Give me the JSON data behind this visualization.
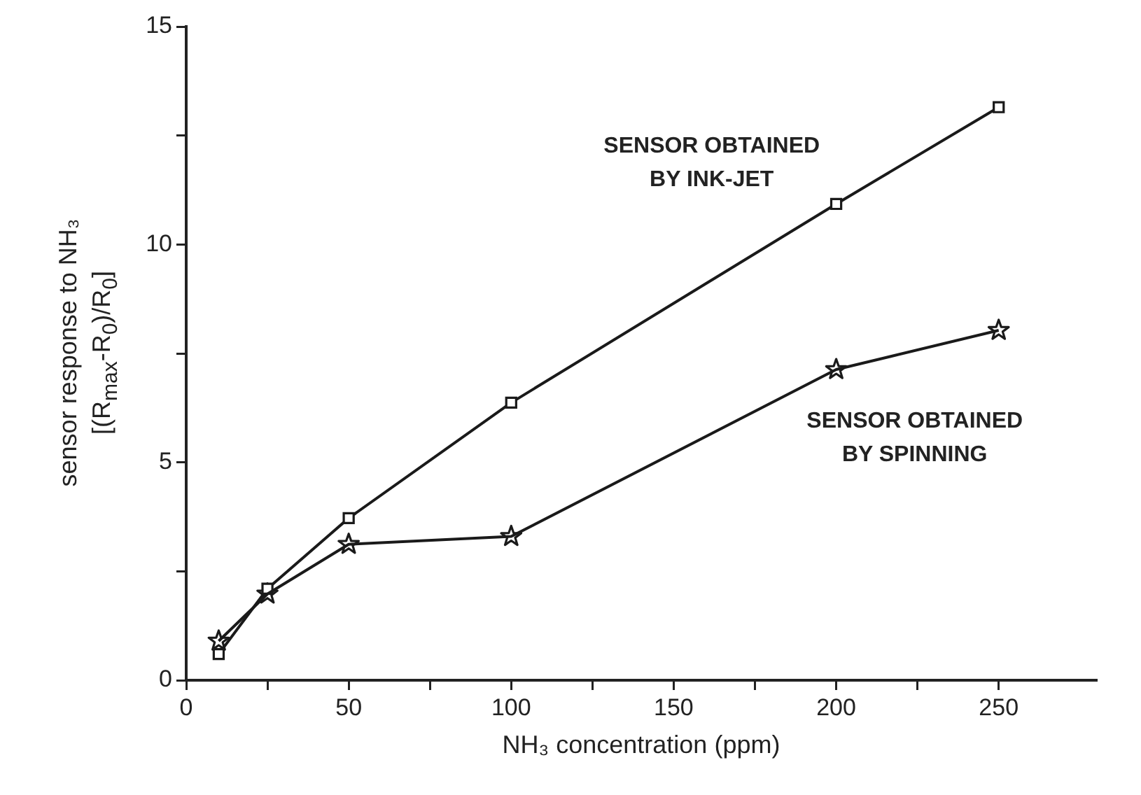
{
  "chart_data": {
    "type": "line",
    "xlabel": "NH₃ concentration (ppm)",
    "ylabel": "sensor response to NH₃\n[(R$_{max}$-R$_{0}$)/R$_{0}$]",
    "x": [
      10,
      25,
      50,
      100,
      200,
      250
    ],
    "series": [
      {
        "name": "SENSOR OBTAINED\nBY INK-JET",
        "color": "#1a1a1a",
        "marker": "square",
        "values": [
          0.6,
          2.1,
          3.72,
          6.37,
          10.93,
          13.15
        ]
      },
      {
        "name": "SENSOR OBTAINED\nBY SPINNING",
        "color": "#1a1a1a",
        "marker": "star",
        "values": [
          0.9,
          1.98,
          3.12,
          3.3,
          7.13,
          8.03
        ]
      }
    ],
    "xlim": [
      0,
      280
    ],
    "xticks": [
      0,
      {
        "value": 25,
        "label": null
      },
      50,
      {
        "value": 75,
        "label": null
      },
      100,
      {
        "value": 125,
        "label": null
      },
      150,
      {
        "value": 175,
        "label": null
      },
      200,
      {
        "value": 225,
        "label": null
      },
      250
    ],
    "ylim": [
      0,
      15
    ],
    "yticks": [
      0,
      {
        "value": 2.5,
        "label": null
      },
      5,
      {
        "value": 7.5,
        "label": null
      },
      10,
      {
        "value": 12.5,
        "label": null
      },
      15
    ],
    "grid": false,
    "legend": false,
    "line_style": "solid"
  }
}
